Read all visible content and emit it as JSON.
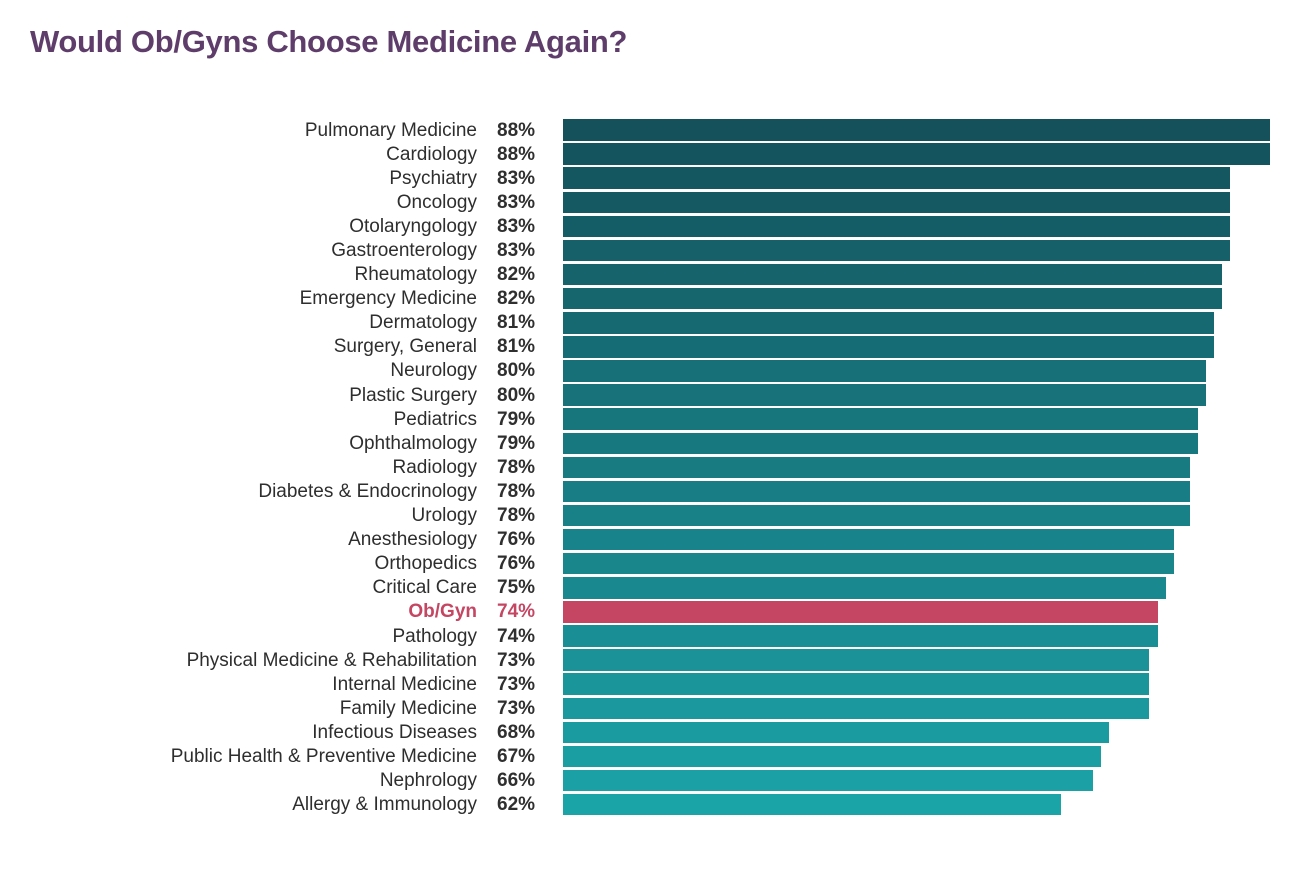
{
  "page": {
    "title": "Would Ob/Gyns Choose Medicine Again?",
    "title_color": "#5e3d6a"
  },
  "chart_data": {
    "type": "bar",
    "orientation": "horizontal",
    "title": "Would Ob/Gyns Choose Medicine Again?",
    "value_suffix": "%",
    "xlim": [
      0,
      88
    ],
    "grid": false,
    "legend": false,
    "bar_color_top": "#14515b",
    "bar_color_bottom": "#1ba4a8",
    "highlight_category": "Ob/Gyn",
    "highlight_color": "#c44663",
    "categories": [
      "Pulmonary Medicine",
      "Cardiology",
      "Psychiatry",
      "Oncology",
      "Otolaryngology",
      "Gastroenterology",
      "Rheumatology",
      "Emergency Medicine",
      "Dermatology",
      "Surgery, General",
      "Neurology",
      "Plastic Surgery",
      "Pediatrics",
      "Ophthalmology",
      "Radiology",
      "Diabetes & Endocrinology",
      "Urology",
      "Anesthesiology",
      "Orthopedics",
      "Critical Care",
      "Ob/Gyn",
      "Pathology",
      "Physical Medicine & Rehabilitation",
      "Internal Medicine",
      "Family Medicine",
      "Infectious Diseases",
      "Public Health & Preventive Medicine",
      "Nephrology",
      "Allergy & Immunology"
    ],
    "values": [
      88,
      88,
      83,
      83,
      83,
      83,
      82,
      82,
      81,
      81,
      80,
      80,
      79,
      79,
      78,
      78,
      78,
      76,
      76,
      75,
      74,
      74,
      73,
      73,
      73,
      68,
      67,
      66,
      62
    ],
    "rows": [
      {
        "label": "Pulmonary Medicine",
        "value": 88,
        "display": "88%",
        "color": "#14515b",
        "highlight": false
      },
      {
        "label": "Cardiology",
        "value": 88,
        "display": "88%",
        "color": "#14545e",
        "highlight": false
      },
      {
        "label": "Psychiatry",
        "value": 83,
        "display": "83%",
        "color": "#155761",
        "highlight": false
      },
      {
        "label": "Oncology",
        "value": 83,
        "display": "83%",
        "color": "#155a63",
        "highlight": false
      },
      {
        "label": "Otolaryngology",
        "value": 83,
        "display": "83%",
        "color": "#155d66",
        "highlight": false
      },
      {
        "label": "Gastroenterology",
        "value": 83,
        "display": "83%",
        "color": "#156069",
        "highlight": false
      },
      {
        "label": "Rheumatology",
        "value": 82,
        "display": "82%",
        "color": "#16636c",
        "highlight": false
      },
      {
        "label": "Emergency Medicine",
        "value": 82,
        "display": "82%",
        "color": "#16666e",
        "highlight": false
      },
      {
        "label": "Dermatology",
        "value": 81,
        "display": "81%",
        "color": "#166971",
        "highlight": false
      },
      {
        "label": "Surgery, General",
        "value": 81,
        "display": "81%",
        "color": "#166c74",
        "highlight": false
      },
      {
        "label": "Neurology",
        "value": 80,
        "display": "80%",
        "color": "#176f77",
        "highlight": false
      },
      {
        "label": "Plastic Surgery",
        "value": 80,
        "display": "80%",
        "color": "#177279",
        "highlight": false
      },
      {
        "label": "Pediatrics",
        "value": 79,
        "display": "79%",
        "color": "#17757c",
        "highlight": false
      },
      {
        "label": "Ophthalmology",
        "value": 79,
        "display": "79%",
        "color": "#17787f",
        "highlight": false
      },
      {
        "label": "Radiology",
        "value": 78,
        "display": "78%",
        "color": "#187b82",
        "highlight": false
      },
      {
        "label": "Diabetes & Endocrinology",
        "value": 78,
        "display": "78%",
        "color": "#187d84",
        "highlight": false
      },
      {
        "label": "Urology",
        "value": 78,
        "display": "78%",
        "color": "#188087",
        "highlight": false
      },
      {
        "label": "Anesthesiology",
        "value": 76,
        "display": "76%",
        "color": "#18838a",
        "highlight": false
      },
      {
        "label": "Orthopedics",
        "value": 76,
        "display": "76%",
        "color": "#19868c",
        "highlight": false
      },
      {
        "label": "Critical Care",
        "value": 75,
        "display": "75%",
        "color": "#19898f",
        "highlight": false
      },
      {
        "label": "Ob/Gyn",
        "value": 74,
        "display": "74%",
        "color": "#c44663",
        "highlight": true
      },
      {
        "label": "Pathology",
        "value": 74,
        "display": "74%",
        "color": "#198f95",
        "highlight": false
      },
      {
        "label": "Physical Medicine & Rehabilitation",
        "value": 73,
        "display": "73%",
        "color": "#1a9297",
        "highlight": false
      },
      {
        "label": "Internal Medicine",
        "value": 73,
        "display": "73%",
        "color": "#1a959a",
        "highlight": false
      },
      {
        "label": "Family Medicine",
        "value": 73,
        "display": "73%",
        "color": "#1a989d",
        "highlight": false
      },
      {
        "label": "Infectious Diseases",
        "value": 68,
        "display": "68%",
        "color": "#1a9ba0",
        "highlight": false
      },
      {
        "label": "Public Health & Preventive Medicine",
        "value": 67,
        "display": "67%",
        "color": "#1b9ea2",
        "highlight": false
      },
      {
        "label": "Nephrology",
        "value": 66,
        "display": "66%",
        "color": "#1ba1a5",
        "highlight": false
      },
      {
        "label": "Allergy & Immunology",
        "value": 62,
        "display": "62%",
        "color": "#1ba4a8",
        "highlight": false
      }
    ]
  }
}
